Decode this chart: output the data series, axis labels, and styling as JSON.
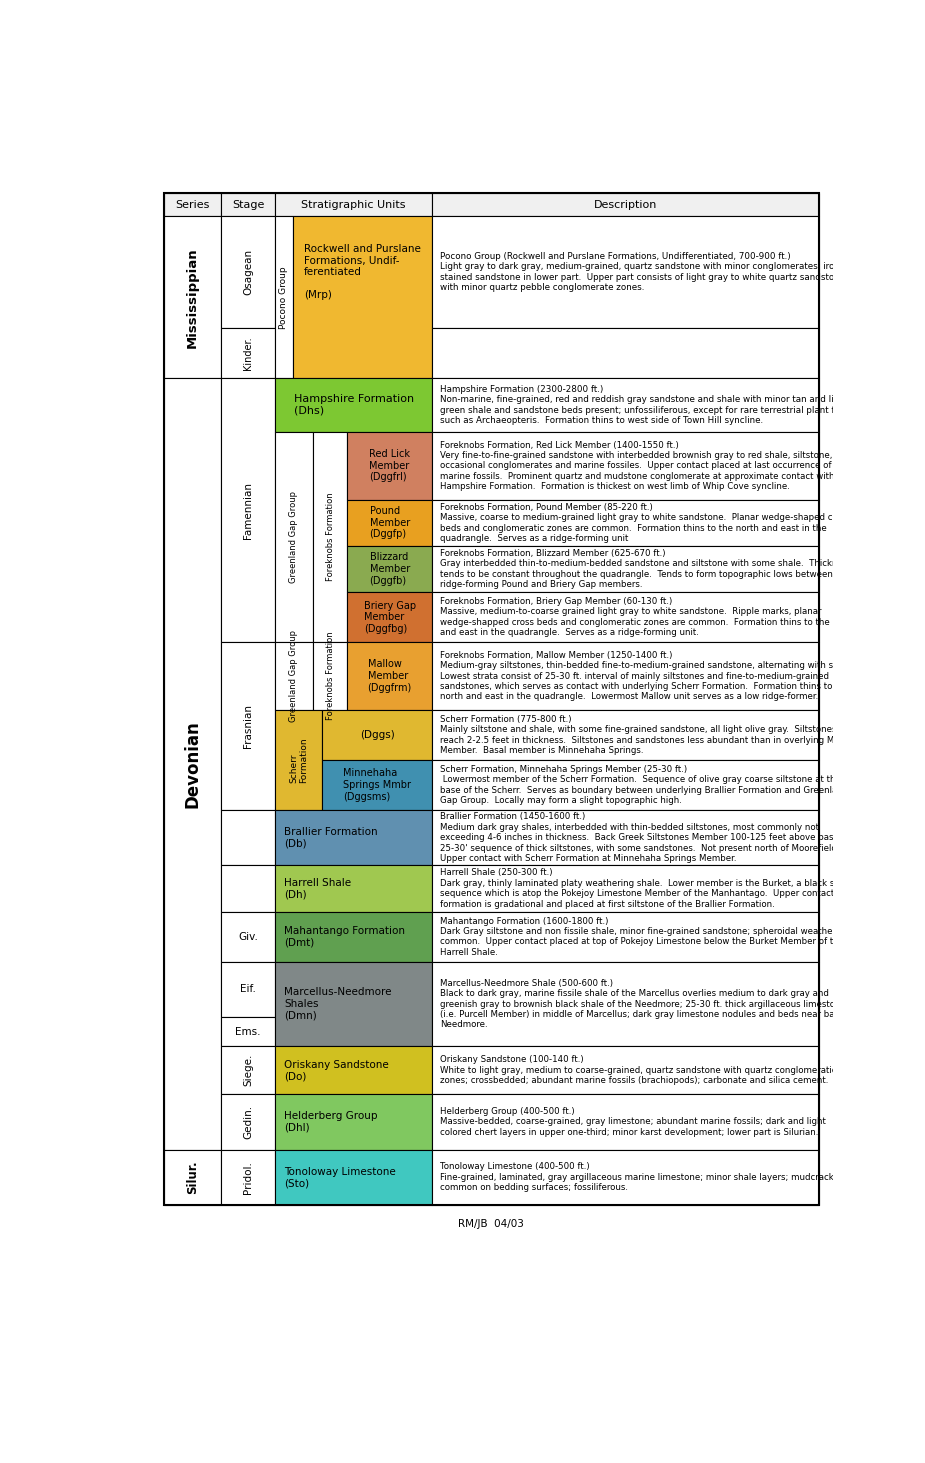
{
  "footer": "RM/JB  04/03",
  "header_bg": "#f0f0f0",
  "colors": {
    "rockwell": "#f0b830",
    "hampshire": "#7dc832",
    "red_lick": "#d08060",
    "pound": "#e8a020",
    "blizzard": "#8aaa50",
    "briery_gap": "#d07030",
    "mallow": "#e8a030",
    "scherr": "#e0b830",
    "minnehaha": "#4090b0",
    "brallier": "#6090b0",
    "harrell": "#a0c850",
    "mahantango": "#60a050",
    "marcellus": "#808888",
    "oriskany": "#d0c020",
    "helderberg": "#80c860",
    "tonoloway": "#40c8c0"
  },
  "row_heights": [
    1.45,
    0.65,
    0.7,
    0.88,
    0.6,
    0.6,
    0.65,
    0.88,
    0.65,
    0.65,
    0.72,
    0.6,
    0.65,
    0.72,
    0.38,
    0.62,
    0.72,
    0.72
  ]
}
